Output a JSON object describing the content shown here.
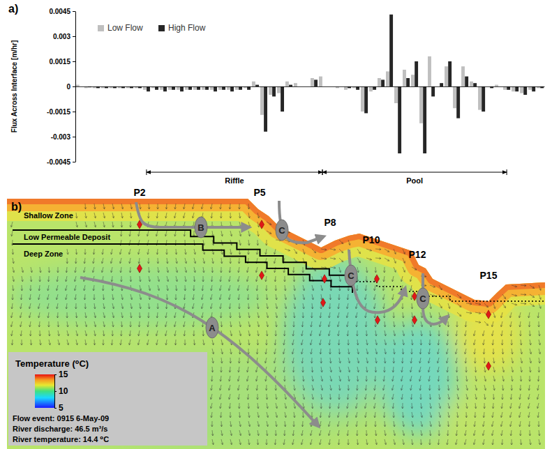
{
  "chart_data": {
    "type": "bar",
    "title": "a)",
    "ylabel": "Flux Across Interface [m/hr]",
    "categories": [
      null,
      null,
      null,
      null,
      null,
      null,
      null,
      null,
      null,
      null,
      null,
      null,
      null,
      null,
      null,
      null,
      null,
      null,
      null,
      null,
      null,
      null,
      null,
      null,
      null,
      null,
      null,
      null,
      null,
      null,
      null,
      null,
      null,
      null,
      null,
      null,
      null,
      null,
      null,
      null,
      null,
      null,
      null,
      null,
      null,
      null,
      null,
      null,
      null,
      null,
      null,
      null,
      null,
      null,
      null,
      null
    ],
    "series": [
      {
        "name": "Low Flow",
        "color": "#bfbfbf",
        "values": [
          0.0001,
          -0.0001,
          -0.0001,
          -0.0001,
          -0.0001,
          -0.0001,
          -0.0001,
          -0.0001,
          -0.0002,
          -0.0001,
          -0.0002,
          -0.0002,
          -0.0002,
          -0.0002,
          -0.0002,
          -0.0002,
          -0.0002,
          -0.0002,
          -0.0002,
          -0.0002,
          -0.0001,
          0.0003,
          -0.0017,
          -0.0005,
          -0.0004,
          0.0003,
          0.0002,
          0,
          0.0005,
          0.0006,
          0,
          -0.0001,
          -0.0002,
          -0.0001,
          -0.0015,
          -0.0003,
          0.0005,
          0.0009,
          -0.001,
          0.001,
          0.0007,
          -0.0022,
          0.0018,
          0,
          0.0012,
          -0.0013,
          0.0012,
          0.0003,
          -0.0014,
          0,
          0.0001,
          -0.0002,
          -0.0003,
          -0.0004,
          -0.0002,
          -0.0001
        ]
      },
      {
        "name": "High Flow",
        "color": "#262626",
        "values": [
          0,
          -5e-05,
          -0.0001,
          -0.0001,
          -0.0001,
          -0.0001,
          -0.0001,
          -0.0001,
          -0.0003,
          -0.0002,
          -0.0003,
          -0.0002,
          -0.0003,
          -0.0002,
          -0.0002,
          -0.0002,
          -0.0003,
          -0.0002,
          -0.0003,
          -0.0002,
          -0.0002,
          0.0001,
          -0.0027,
          -0.0006,
          -0.0015,
          0.0001,
          0,
          0,
          0.0004,
          0,
          0,
          0,
          -0.0001,
          -0.0002,
          -0.0016,
          -0.0002,
          0.0004,
          0.0043,
          -0.004,
          0.0005,
          0.0015,
          -0.004,
          -0.0006,
          0.0002,
          0.0015,
          -0.0019,
          0.0006,
          0.0002,
          -0.0015,
          -0.0001,
          0,
          -0.0002,
          -0.0003,
          -0.0005,
          -0.0003,
          -0.0001
        ]
      }
    ],
    "ylim": [
      -0.0045,
      0.0045
    ],
    "yticks": [
      -0.0045,
      -0.003,
      -0.0015,
      0,
      0.0015,
      0.003,
      0.0045
    ],
    "legend": "upper left",
    "tick_labels": "y",
    "annotations": [
      "Riffle",
      "Pool"
    ]
  },
  "diagram": {
    "panel_label": "b)",
    "zones": [
      "Shallow Zone",
      "Low Permeable Deposit",
      "Deep Zone"
    ],
    "piezometers": [
      "P2",
      "P5",
      "P8",
      "P10",
      "P12",
      "P15"
    ],
    "flow_paths": [
      "A",
      "B",
      "C",
      "C",
      "C"
    ],
    "colorbar": {
      "title": "Temperature (⁰C)",
      "range": [
        5,
        15
      ],
      "ticks": [
        5,
        10,
        15
      ]
    },
    "info": [
      "Flow event: 0915 6-May-09",
      "River discharge: 46.5 m³/s",
      "River temperature: 14.4 ⁰C"
    ]
  }
}
